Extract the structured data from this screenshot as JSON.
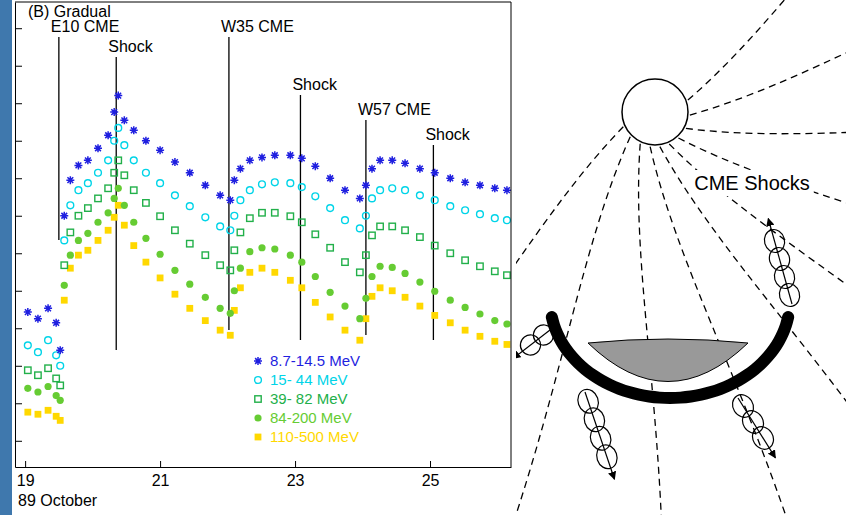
{
  "chart_data": {
    "type": "scatter",
    "title": "(B) Gradual",
    "xlabel": "89 October",
    "x": [
      19.04,
      19.19,
      19.34,
      19.46,
      19.52,
      19.58,
      19.67,
      19.79,
      19.93,
      20.08,
      20.23,
      20.32,
      20.38,
      20.47,
      20.61,
      20.79,
      21,
      21.22,
      21.44,
      21.67,
      21.89,
      22.04,
      22.1,
      22.19,
      22.33,
      22.51,
      22.7,
      22.93,
      23.1,
      23.3,
      23.52,
      23.74,
      23.96,
      24.05,
      24.14,
      24.26,
      24.44,
      24.63,
      24.85,
      25.07,
      25.3,
      25.52,
      25.74,
      25.96,
      26.14
    ],
    "xlim": [
      18.85,
      26.2
    ],
    "xticks": [
      19,
      21,
      23,
      25
    ],
    "ylim": [
      2e-07,
      500000.0
    ],
    "yticks": [
      1e-06,
      1e-05,
      0.0001,
      0.001,
      0.01,
      0.1,
      1,
      10,
      100,
      1000,
      10000,
      100000
    ],
    "log": "y",
    "tick_labels": "x",
    "legend": "bottom",
    "series": [
      {
        "name": "8.7-14.5 MeV",
        "color": "#1f1fe0",
        "marker": "asterisk",
        "values": [
          0.0027,
          0.0018,
          0.0034,
          0.0014,
          0.00026,
          1.0,
          8.9,
          22,
          30,
          63,
          140,
          580,
          1600,
          350,
          190,
          100,
          56,
          27,
          14,
          6.5,
          3.5,
          2.6,
          8.9,
          18,
          30,
          36,
          41,
          41,
          34,
          21,
          10,
          4.8,
          2.9,
          6.5,
          18,
          30,
          30,
          25,
          18,
          14,
          10,
          7.8,
          6.5,
          5.4,
          4.8
        ]
      },
      {
        "name": "15- 44 MeV",
        "color": "#00d4e8",
        "marker": "circle-open",
        "values": [
          0.00035,
          0.00023,
          0.00048,
          0.00019,
          0.0001,
          0.22,
          1.9,
          4.8,
          7.4,
          14,
          30,
          100,
          220,
          76,
          30,
          14,
          7.4,
          3.5,
          1.8,
          0.91,
          0.52,
          0.41,
          1.0,
          2.6,
          4.8,
          6.9,
          7.8,
          7.4,
          5.8,
          3.3,
          1.6,
          0.76,
          0.46,
          1.0,
          2.9,
          4.8,
          5.4,
          4.8,
          3.5,
          2.6,
          1.8,
          1.4,
          1.1,
          0.86,
          0.76
        ]
      },
      {
        "name": "39- 82 MeV",
        "color": "#22b04a",
        "marker": "square-open",
        "values": [
          7.6e-05,
          5.6e-05,
          8.6e-05,
          4.6e-05,
          3e-05,
          0.048,
          0.36,
          1.0,
          1.6,
          2.9,
          5.4,
          14,
          30,
          12,
          4.8,
          2.2,
          0.97,
          0.41,
          0.18,
          0.089,
          0.048,
          0.035,
          0.12,
          0.36,
          0.86,
          1.2,
          1.2,
          0.97,
          0.67,
          0.32,
          0.14,
          0.058,
          0.031,
          0.089,
          0.3,
          0.52,
          0.52,
          0.41,
          0.27,
          0.16,
          0.1,
          0.065,
          0.045,
          0.033,
          0.026
        ]
      },
      {
        "name": "84-200 MeV",
        "color": "#66cc33",
        "marker": "circle",
        "values": [
          2.5e-05,
          2e-05,
          2.8e-05,
          1.6e-05,
          1.2e-05,
          0.014,
          0.089,
          0.22,
          0.34,
          0.67,
          1.2,
          2.9,
          5.4,
          1.9,
          0.67,
          0.25,
          0.094,
          0.035,
          0.015,
          0.0067,
          0.0034,
          0.0025,
          0.01,
          0.04,
          0.11,
          0.14,
          0.13,
          0.089,
          0.058,
          0.024,
          0.0091,
          0.0039,
          0.0018,
          0.0063,
          0.024,
          0.045,
          0.042,
          0.029,
          0.017,
          0.0097,
          0.0056,
          0.0036,
          0.0024,
          0.0016,
          0.0013
        ]
      },
      {
        "name": "110-500 MeV",
        "color": "#ffd800",
        "marker": "square",
        "values": [
          5.8e-06,
          5.1e-06,
          6.5e-06,
          4.5e-06,
          3.5e-06,
          0.0056,
          0.04,
          0.089,
          0.12,
          0.22,
          0.41,
          0.91,
          1.9,
          0.56,
          0.16,
          0.058,
          0.022,
          0.0081,
          0.0034,
          0.0016,
          0.00089,
          0.00065,
          0.003,
          0.012,
          0.031,
          0.04,
          0.031,
          0.019,
          0.012,
          0.0049,
          0.002,
          0.00089,
          0.00048,
          0.0018,
          0.0071,
          0.012,
          0.01,
          0.0067,
          0.0039,
          0.0022,
          0.0014,
          0.00089,
          0.00061,
          0.00045,
          0.00037
        ]
      }
    ],
    "annotations": [
      {
        "text": "E10 CME",
        "x": 19.5
      },
      {
        "text": "Shock",
        "x": 20.35
      },
      {
        "text": "W35 CME",
        "x": 22.02
      },
      {
        "text": "Shock",
        "x": 23.08
      },
      {
        "text": "W57 CME",
        "x": 24.05
      },
      {
        "text": "Shock",
        "x": 25.05
      }
    ]
  },
  "diagram": {
    "label": "CME Shocks"
  }
}
